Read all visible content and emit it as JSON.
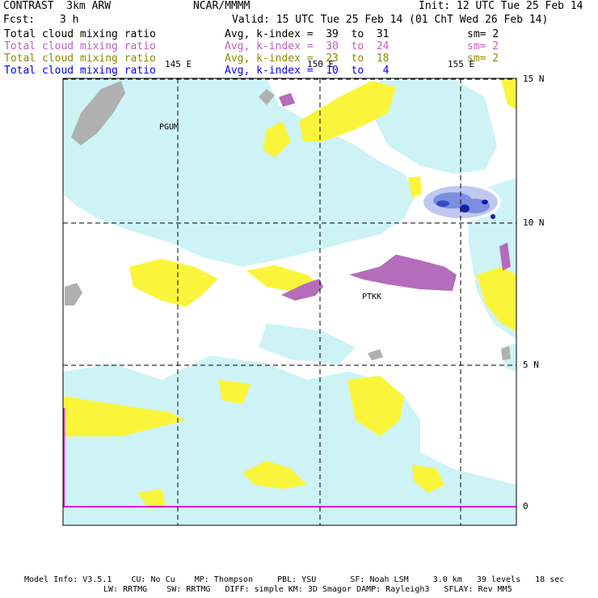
{
  "header": {
    "model": "CONTRAST  3km ARW",
    "org": "NCAR/MMMM",
    "init": "Init: 12 UTC Tue 25 Feb 14",
    "fcst_label": "Fcst:",
    "fcst_value": "3 h",
    "valid": "Valid: 15 UTC Tue 25 Feb 14 (01 ChT Wed 26 Feb 14)"
  },
  "legend_rows": [
    {
      "field": "Total cloud mixing ratio",
      "range": "Avg, k-index =  39  to  31",
      "sm": "sm= 2",
      "color": "#000000"
    },
    {
      "field": "Total cloud mixing ratio",
      "range": "Avg, k-index =  30  to  24",
      "sm": "sm= 2",
      "color": "#c060c0"
    },
    {
      "field": "Total cloud mixing ratio",
      "range": "Avg, k-index =  23  to  18",
      "sm": "sm= 2",
      "color": "#8c8c00"
    },
    {
      "field": "Total cloud mixing ratio",
      "range": "Avg, k-index =  10  to   4",
      "sm": "",
      "color": "#0000ff"
    }
  ],
  "map": {
    "lon_labels": [
      "145 E",
      "150 E",
      "155 E"
    ],
    "lat_labels": [
      "15 N",
      "10 N",
      "5 N",
      "0"
    ],
    "stations": [
      "PGUM",
      "PTKK"
    ],
    "colors": {
      "low_cloud": "#cdf3f6",
      "mid_cloud": "#faf53a",
      "high_cloud": "#b46cbc",
      "deep_cloud": "#b0b0b0",
      "convective": "#3548c8",
      "equator_line": "#e000e0"
    }
  },
  "footer": {
    "line1": "Model Info: V3.5.1    CU: No Cu    MP: Thompson     PBL: YSU       SF: Noah LSM     3.0 km   39 levels   18 sec",
    "line2": "LW: RRTMG    SW: RRTMG   DIFF: simple KM: 3D Smagor DAMP: Rayleigh3   SFLAY: Rev MM5"
  }
}
